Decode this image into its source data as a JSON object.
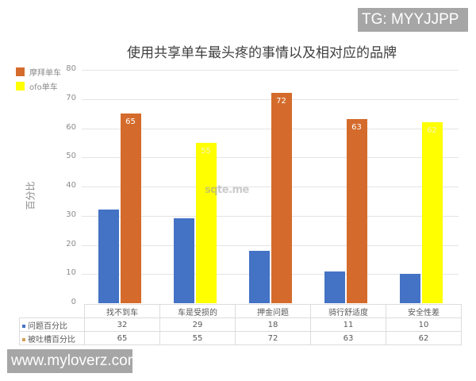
{
  "badges": {
    "tg": "TG: MYYJJPP",
    "website": "www.myloverz.com"
  },
  "watermark": "sqte.me",
  "colors": {
    "series1_blue": "#4472c4",
    "series2_orange": "#d46b2c",
    "series2_yellow": "#ffff00",
    "badge_gray": "#a6a6a6",
    "grid": "#e4e4e4"
  },
  "legend": [
    {
      "label": "摩拜单车",
      "color": "#d46b2c"
    },
    {
      "label": "ofo单车",
      "color": "#ffff00"
    }
  ],
  "chart_data": {
    "type": "bar",
    "title": "使用共享单车最头疼的事情以及相对应的品牌",
    "xlabel": "",
    "ylabel": "百分比",
    "ylim": [
      0,
      80
    ],
    "yticks": [
      0,
      10,
      20,
      30,
      40,
      50,
      60,
      70,
      80
    ],
    "grid": true,
    "legend_position": "top-left",
    "categories": [
      "找不到车",
      "车是受损的",
      "押金问题",
      "骑行舒适度",
      "安全性差"
    ],
    "series": [
      {
        "name": "问题百分比",
        "values": [
          32,
          29,
          18,
          11,
          10
        ],
        "colors": [
          "#4472c4",
          "#4472c4",
          "#4472c4",
          "#4472c4",
          "#4472c4"
        ]
      },
      {
        "name": "被吐槽百分比",
        "values": [
          65,
          55,
          72,
          63,
          62
        ],
        "colors": [
          "#d46b2c",
          "#ffff00",
          "#d46b2c",
          "#d46b2c",
          "#ffff00"
        ],
        "brands": [
          "摩拜单车",
          "ofo单车",
          "摩拜单车",
          "摩拜单车",
          "ofo单车"
        ]
      }
    ],
    "data_labels": {
      "series": "被吐槽百分比",
      "values": [
        65,
        55,
        72,
        63,
        62
      ]
    }
  },
  "table": {
    "rows": [
      {
        "label": "问题百分比",
        "marker_color": "#4472c4",
        "values": [
          "32",
          "29",
          "18",
          "11",
          "10"
        ]
      },
      {
        "label": "被吐槽百分比",
        "marker_color": "#d4a15a",
        "values": [
          "65",
          "55",
          "72",
          "63",
          "62"
        ]
      }
    ]
  }
}
